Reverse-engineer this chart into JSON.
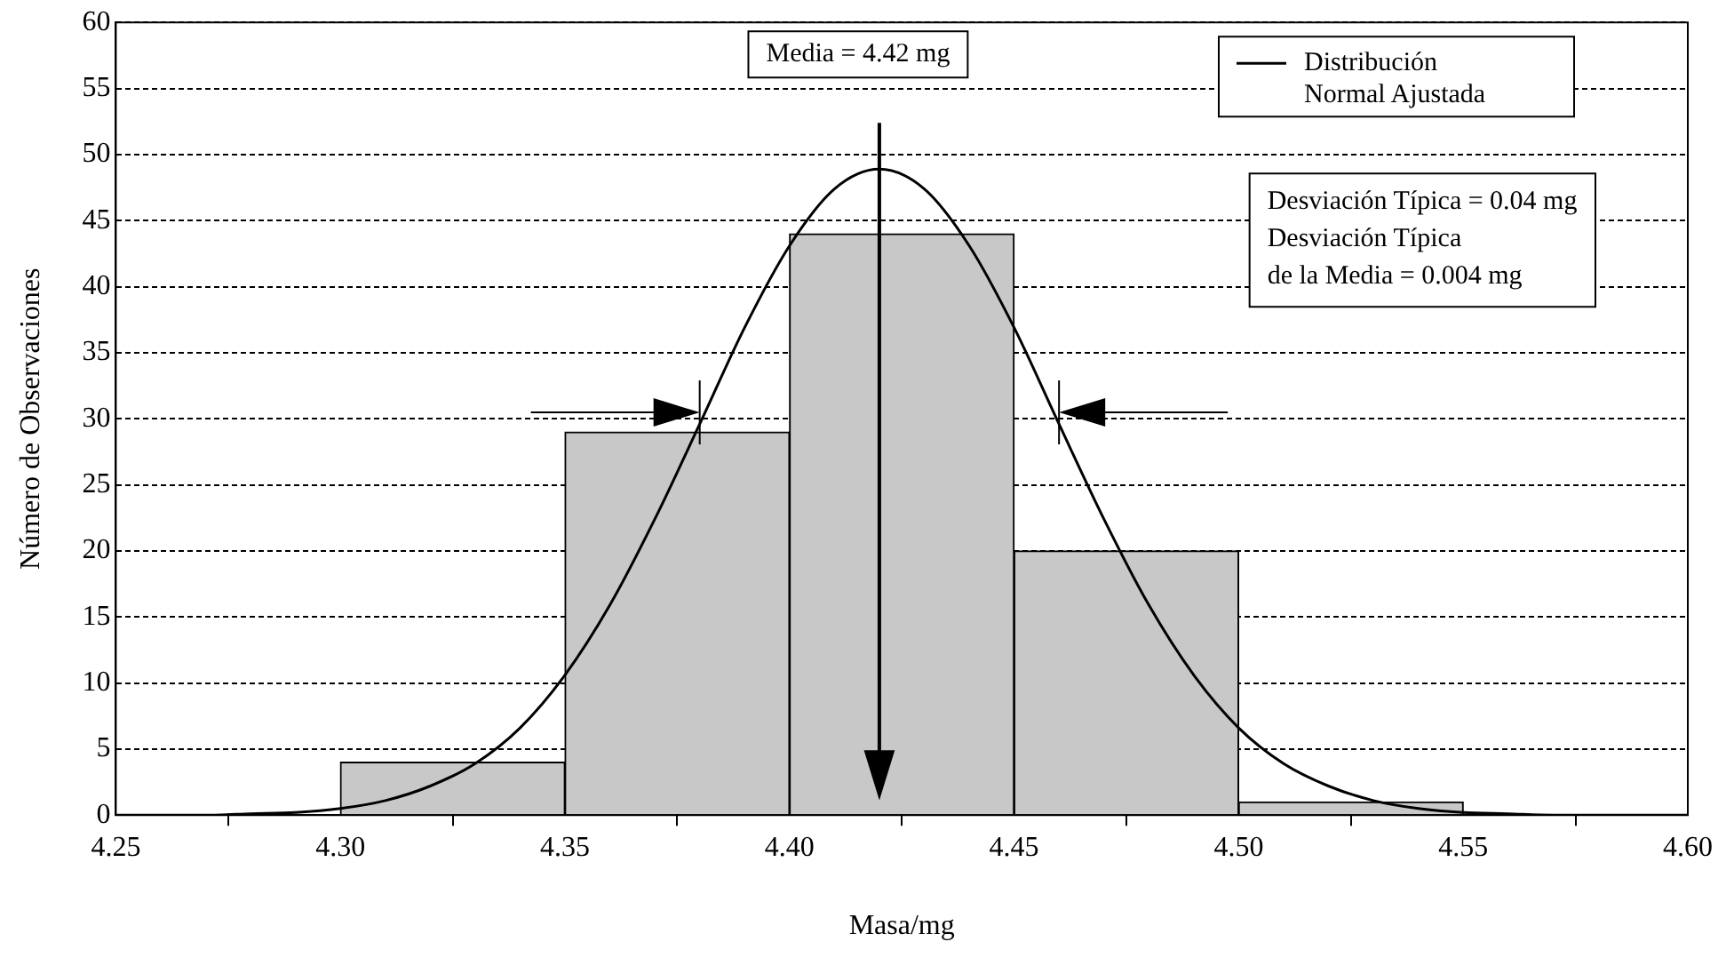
{
  "chart_data": {
    "type": "histogram",
    "xlabel": "Masa/mg",
    "ylabel": "Número de Observaciones",
    "bins": [
      4.3,
      4.35,
      4.4,
      4.45,
      4.5,
      4.55
    ],
    "values": [
      4,
      29,
      44,
      20,
      1
    ],
    "color": "#c8c8c8",
    "series": [
      {
        "type": "line",
        "name": "Distribución Normal Ajustada",
        "color": "#000000",
        "x": [
          4.25,
          4.26,
          4.27,
          4.28,
          4.29,
          4.3,
          4.31,
          4.32,
          4.33,
          4.34,
          4.35,
          4.36,
          4.37,
          4.38,
          4.39,
          4.4,
          4.41,
          4.42,
          4.43,
          4.44,
          4.45,
          4.46,
          4.47,
          4.48,
          4.49,
          4.5,
          4.51,
          4.52,
          4.53,
          4.54,
          4.55,
          4.56,
          4.57,
          4.58,
          4.59,
          4.6
        ],
        "values": [
          0,
          0,
          0,
          0.1,
          0.2,
          0.5,
          1.1,
          2.2,
          3.9,
          6.6,
          10.6,
          15.9,
          22.4,
          29.6,
          36.9,
          43.1,
          47.4,
          48.9,
          47.4,
          43.1,
          36.9,
          29.6,
          22.4,
          15.9,
          10.6,
          6.6,
          3.9,
          2.2,
          1.1,
          0.5,
          0.2,
          0.1,
          0,
          0,
          0,
          0
        ]
      }
    ],
    "xlim": [
      4.25,
      4.6
    ],
    "xticks": [
      {
        "value": 4.25,
        "label": "4.25"
      },
      {
        "value": 4.3,
        "label": "4.30"
      },
      {
        "value": 4.35,
        "label": "4.35"
      },
      {
        "value": 4.4,
        "label": "4.40"
      },
      {
        "value": 4.45,
        "label": "4.45"
      },
      {
        "value": 4.5,
        "label": "4.50"
      },
      {
        "value": 4.55,
        "label": "4.55"
      },
      {
        "value": 4.6,
        "label": "4.60"
      }
    ],
    "ylim": [
      0,
      60
    ],
    "yticks": [
      0,
      5,
      10,
      15,
      20,
      25,
      30,
      35,
      40,
      45,
      50,
      55,
      60
    ],
    "grid": "y",
    "legend": "top right",
    "marker": "none",
    "line_style": "solid",
    "ref_lines": [
      {
        "axis": "x",
        "value": 4.42,
        "label": "Media = 4.42 mg"
      },
      {
        "axis": "x",
        "value": 4.38
      },
      {
        "axis": "x",
        "value": 4.46
      }
    ],
    "annotations": [
      "Desviación Típica = 0.04 mg\nDesviación Típica\nde la Media = 0.004 mg"
    ]
  }
}
